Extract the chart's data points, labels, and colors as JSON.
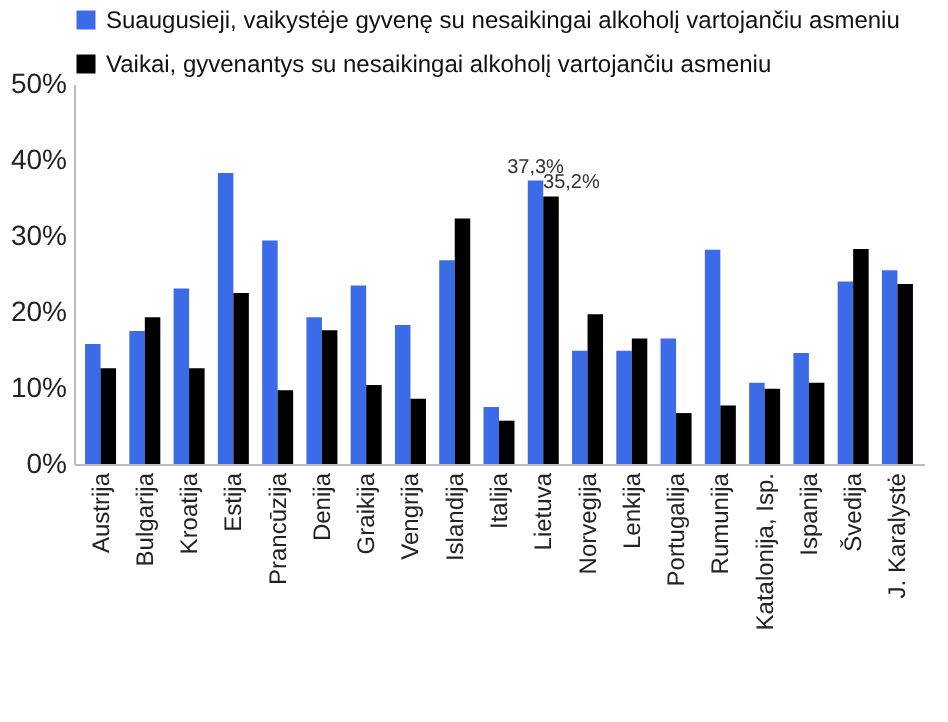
{
  "chart_data": {
    "type": "bar",
    "categories": [
      "Austrija",
      "Bulgarija",
      "Kroatija",
      "Estija",
      "Prancūzija",
      "Denija",
      "Graikija",
      "Vengrija",
      "Islandija",
      "Italija",
      "Lietuva",
      "Norvegija",
      "Lenkija",
      "Portugalija",
      "Rumunija",
      "Katalonija, Isp.",
      "Ispanija",
      "Švedija",
      "J. Karalystė"
    ],
    "series": [
      {
        "name": "Suaugusieji, vaikystėje gyvenę su nesaikingai alkoholį vartojančiu asmeniu",
        "color": "#3b6be6",
        "values": [
          15.8,
          17.5,
          23.1,
          38.3,
          29.4,
          19.3,
          23.5,
          18.3,
          26.8,
          7.5,
          37.3,
          14.9,
          14.9,
          16.5,
          28.2,
          10.7,
          14.6,
          24.0,
          25.5
        ],
        "value_labels": [
          null,
          null,
          null,
          null,
          null,
          null,
          null,
          null,
          null,
          null,
          "37,3%",
          null,
          null,
          null,
          null,
          null,
          null,
          null,
          null
        ]
      },
      {
        "name": "Vaikai, gyvenantys su nesaikingai alkoholį vartojančiu asmeniu",
        "color": "#000000",
        "values": [
          12.6,
          19.3,
          12.6,
          22.5,
          9.7,
          17.6,
          10.4,
          8.6,
          32.3,
          5.7,
          35.2,
          19.7,
          16.5,
          6.7,
          7.7,
          9.9,
          10.7,
          28.3,
          23.7
        ],
        "value_labels": [
          null,
          null,
          null,
          null,
          null,
          null,
          null,
          null,
          null,
          null,
          "35,2%",
          null,
          null,
          null,
          null,
          null,
          null,
          null,
          null
        ]
      }
    ],
    "ylim": [
      0,
      50
    ],
    "yticks": [
      {
        "value": 0,
        "label": "0%"
      },
      {
        "value": 10,
        "label": "10%"
      },
      {
        "value": 20,
        "label": "20%"
      },
      {
        "value": 30,
        "label": "30%"
      },
      {
        "value": 40,
        "label": "40%"
      },
      {
        "value": 50,
        "label": "50%"
      }
    ],
    "grid": false,
    "legend": "top"
  }
}
